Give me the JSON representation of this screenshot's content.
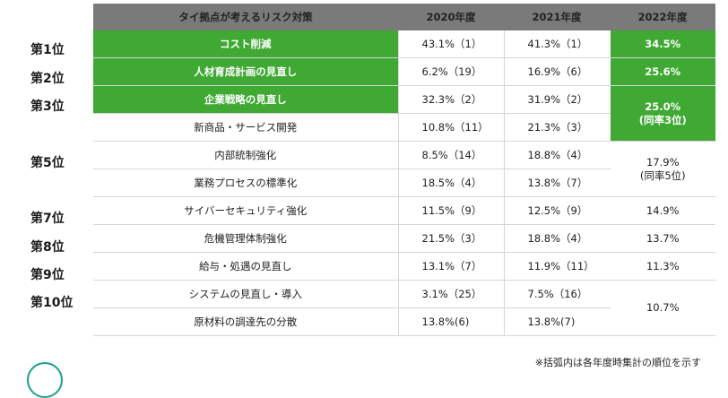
{
  "header": {
    "col1": "タイ拠点が考えるリスク対策",
    "col2": "2020年度",
    "col3": "2021年度",
    "col4": "2022年度"
  },
  "ranks": [
    "第1位",
    "第2位",
    "第3位",
    "第5位",
    "第7位",
    "第8位",
    "第9位",
    "第10位"
  ],
  "rows": [
    {
      "item": "コスト削減",
      "y2020": "43.1%（1）",
      "y2021": "41.3%（1）",
      "y2022": "34.5%"
    },
    {
      "item": "人材育成計画の見直し",
      "y2020": "6.2%（19）",
      "y2021": "16.9%（6）",
      "y2022": "25.6%"
    },
    {
      "item": "企業戦略の見直し",
      "y2020": "32.3%（2）",
      "y2021": "31.9%（2）"
    },
    {
      "item": "新商品・サービス開発",
      "y2020": "10.8%（11）",
      "y2021": "21.3%（3）"
    },
    {
      "item": "内部統制強化",
      "y2020": "8.5%（14）",
      "y2021": "18.8%（4）"
    },
    {
      "item": "業務プロセスの標準化",
      "y2020": "18.5%（4）",
      "y2021": "13.8%（7）"
    },
    {
      "item": "サイバーセキュリティ強化",
      "y2020": "11.5%（9）",
      "y2021": "12.5%（9）",
      "y2022": "14.9%"
    },
    {
      "item": "危機管理体制強化",
      "y2020": "21.5%（3）",
      "y2021": "18.8%（4）",
      "y2022": "13.7%"
    },
    {
      "item": "給与・処遇の見直し",
      "y2020": "13.1%（7）",
      "y2021": "11.9%（11）",
      "y2022": "11.3%"
    },
    {
      "item": "システムの見直し・導入",
      "y2020": "3.1%（25）",
      "y2021": "7.5%（16）"
    },
    {
      "item": "原材料の調達先の分散",
      "y2020": "13.8%(6)",
      "y2021": "13.8%(7)"
    }
  ],
  "merged": {
    "rank3": {
      "value": "25.0%",
      "sub": "(同率3位)"
    },
    "rank5": {
      "value": "17.9%",
      "sub": "(同率5位)"
    },
    "rank10": {
      "value": "10.7%"
    }
  },
  "note": "※括弧内は各年度時集計の順位を示す",
  "colors": {
    "accent_green": "#3fa933",
    "header_gray": "#7a7a7a"
  }
}
